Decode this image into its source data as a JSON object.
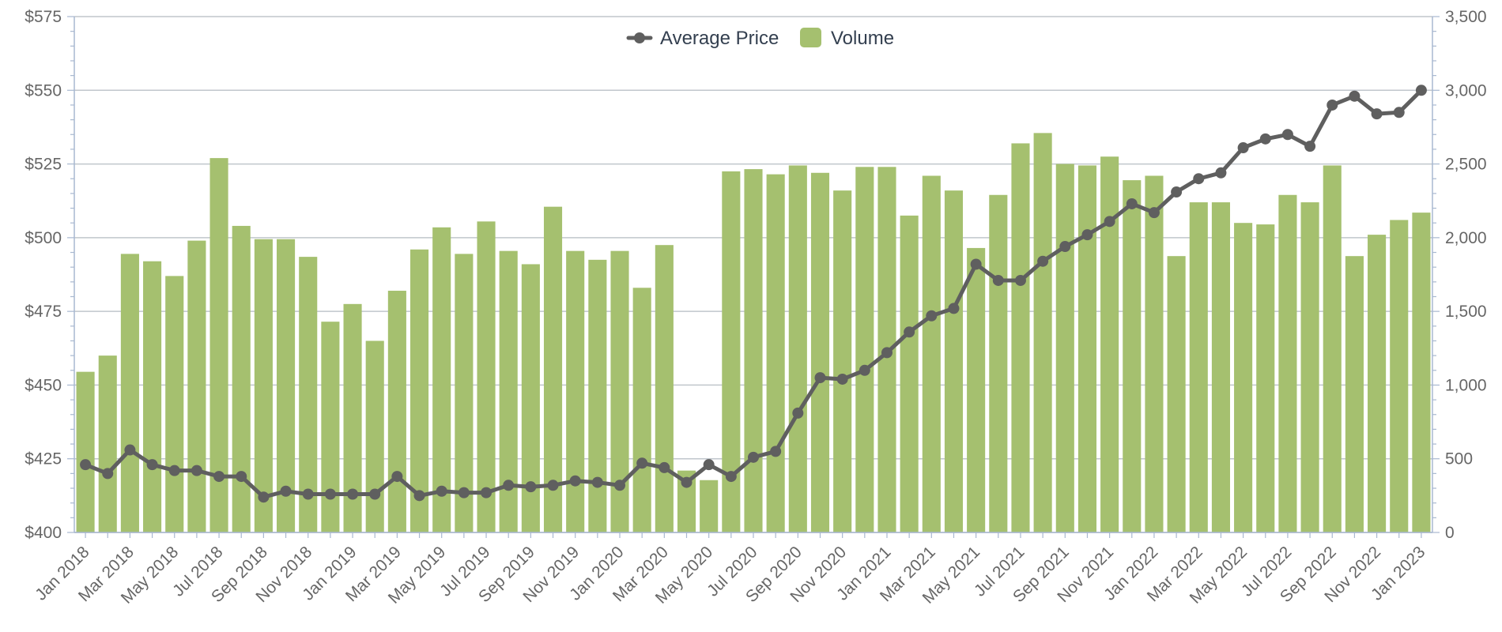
{
  "chart_data": {
    "type": "bar",
    "title": "",
    "xlabel": "",
    "ylabel": "",
    "y2label": "",
    "legend": {
      "placement": "top-center",
      "items": [
        {
          "label": "Average Price",
          "kind": "line"
        },
        {
          "label": "Volume",
          "kind": "bar"
        }
      ]
    },
    "colors": {
      "volume": "#a5c06f",
      "price": "#5f5f5f",
      "grid": "#c0c6cc",
      "axis": "#a8b8d0",
      "text": "#666666"
    },
    "grid": true,
    "ylim": [
      400,
      575
    ],
    "y2lim": [
      0,
      3500
    ],
    "yticks": [
      "$400",
      "$425",
      "$450",
      "$475",
      "$500",
      "$525",
      "$550",
      "$575"
    ],
    "y2ticks": [
      "0",
      "500",
      "1,000",
      "1,500",
      "2,000",
      "2,500",
      "3,000",
      "3,500"
    ],
    "categories": [
      "Jan 2018",
      "Feb 2018",
      "Mar 2018",
      "Apr 2018",
      "May 2018",
      "Jun 2018",
      "Jul 2018",
      "Aug 2018",
      "Sep 2018",
      "Oct 2018",
      "Nov 2018",
      "Dec 2018",
      "Jan 2019",
      "Feb 2019",
      "Mar 2019",
      "Apr 2019",
      "May 2019",
      "Jun 2019",
      "Jul 2019",
      "Aug 2019",
      "Sep 2019",
      "Oct 2019",
      "Nov 2019",
      "Dec 2019",
      "Jan 2020",
      "Feb 2020",
      "Mar 2020",
      "Apr 2020",
      "May 2020",
      "Jun 2020",
      "Jul 2020",
      "Aug 2020",
      "Sep 2020",
      "Oct 2020",
      "Nov 2020",
      "Dec 2020",
      "Jan 2021",
      "Feb 2021",
      "Mar 2021",
      "Apr 2021",
      "May 2021",
      "Jun 2021",
      "Jul 2021",
      "Aug 2021",
      "Sep 2021",
      "Oct 2021",
      "Nov 2021",
      "Dec 2021",
      "Jan 2022",
      "Feb 2022",
      "Mar 2022",
      "Apr 2022",
      "May 2022",
      "Jun 2022",
      "Jul 2022",
      "Aug 2022",
      "Sep 2022",
      "Oct 2022",
      "Nov 2022",
      "Dec 2022",
      "Jan 2023"
    ],
    "xtick_labels": [
      "Jan 2018",
      "Mar 2018",
      "May 2018",
      "Jul 2018",
      "Sep 2018",
      "Nov 2018",
      "Jan 2019",
      "Mar 2019",
      "May 2019",
      "Jul 2019",
      "Sep 2019",
      "Nov 2019",
      "Jan 2020",
      "Mar 2020",
      "May 2020",
      "Jul 2020",
      "Sep 2020",
      "Nov 2020",
      "Jan 2021",
      "Mar 2021",
      "May 2021",
      "Jul 2021",
      "Sep 2021",
      "Nov 2021",
      "Jan 2022",
      "Mar 2022",
      "May 2022",
      "Jul 2022",
      "Sep 2022",
      "Nov 2022",
      "Jan 2023"
    ],
    "series": [
      {
        "name": "Volume",
        "type": "bar",
        "axis": "right",
        "values": [
          1090,
          1200,
          1890,
          1840,
          1740,
          1980,
          2540,
          2080,
          1990,
          1990,
          1870,
          1430,
          1550,
          1300,
          1640,
          1920,
          2070,
          1890,
          2110,
          1910,
          1820,
          2210,
          1910,
          1850,
          1910,
          1660,
          1950,
          420,
          355,
          2450,
          2465,
          2430,
          2490,
          2440,
          2320,
          2480,
          2480,
          2150,
          2420,
          2320,
          1930,
          2290,
          2640,
          2710,
          2500,
          2490,
          2550,
          2390,
          2420,
          1875,
          2240,
          2240,
          2100,
          2090,
          2290,
          2240,
          2490,
          1875,
          2020,
          2120,
          2170
        ]
      },
      {
        "name": "Average Price",
        "type": "line",
        "axis": "left",
        "values": [
          423,
          420,
          428,
          423,
          421,
          421,
          419,
          419,
          412,
          414,
          413,
          413,
          413,
          413,
          419,
          412.5,
          414,
          413.5,
          413.5,
          416,
          415.5,
          416,
          417.5,
          417,
          416,
          423.5,
          422,
          417,
          423,
          419,
          425.5,
          427.5,
          440.5,
          452.5,
          452,
          455,
          461,
          468,
          473.5,
          476,
          491,
          485.5,
          485.5,
          492,
          497,
          501,
          505.5,
          511.5,
          508.5,
          515.5,
          520,
          522,
          530.5,
          533.5,
          535,
          531,
          545,
          548,
          542,
          542.5,
          550
        ]
      }
    ]
  }
}
